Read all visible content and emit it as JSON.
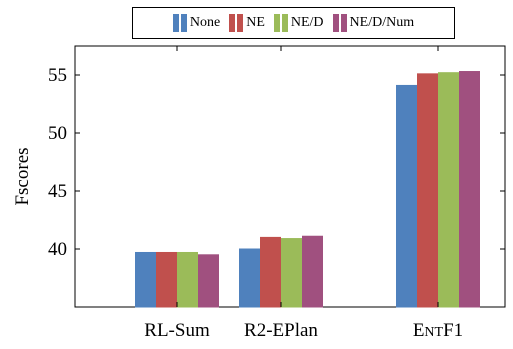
{
  "chart_data": {
    "type": "bar",
    "categories": [
      "RL-Sum",
      "R2-EPlan",
      "EntF1"
    ],
    "series": [
      {
        "name": "None",
        "color": "#4f81bd",
        "values": [
          39.7,
          40.0,
          54.1
        ]
      },
      {
        "name": "NE",
        "color": "#c0504d",
        "values": [
          39.7,
          41.0,
          55.1
        ]
      },
      {
        "name": "NE/D",
        "color": "#9bbb59",
        "values": [
          39.7,
          40.9,
          55.2
        ]
      },
      {
        "name": "NE/D/Num",
        "color": "#a0507f",
        "values": [
          39.5,
          41.1,
          55.3
        ]
      }
    ],
    "xlabel": "",
    "ylabel": "Fscores",
    "ylim": [
      35,
      57.5
    ],
    "yticks": [
      40,
      45,
      50,
      55
    ],
    "grid": false,
    "legend_position": "top"
  }
}
